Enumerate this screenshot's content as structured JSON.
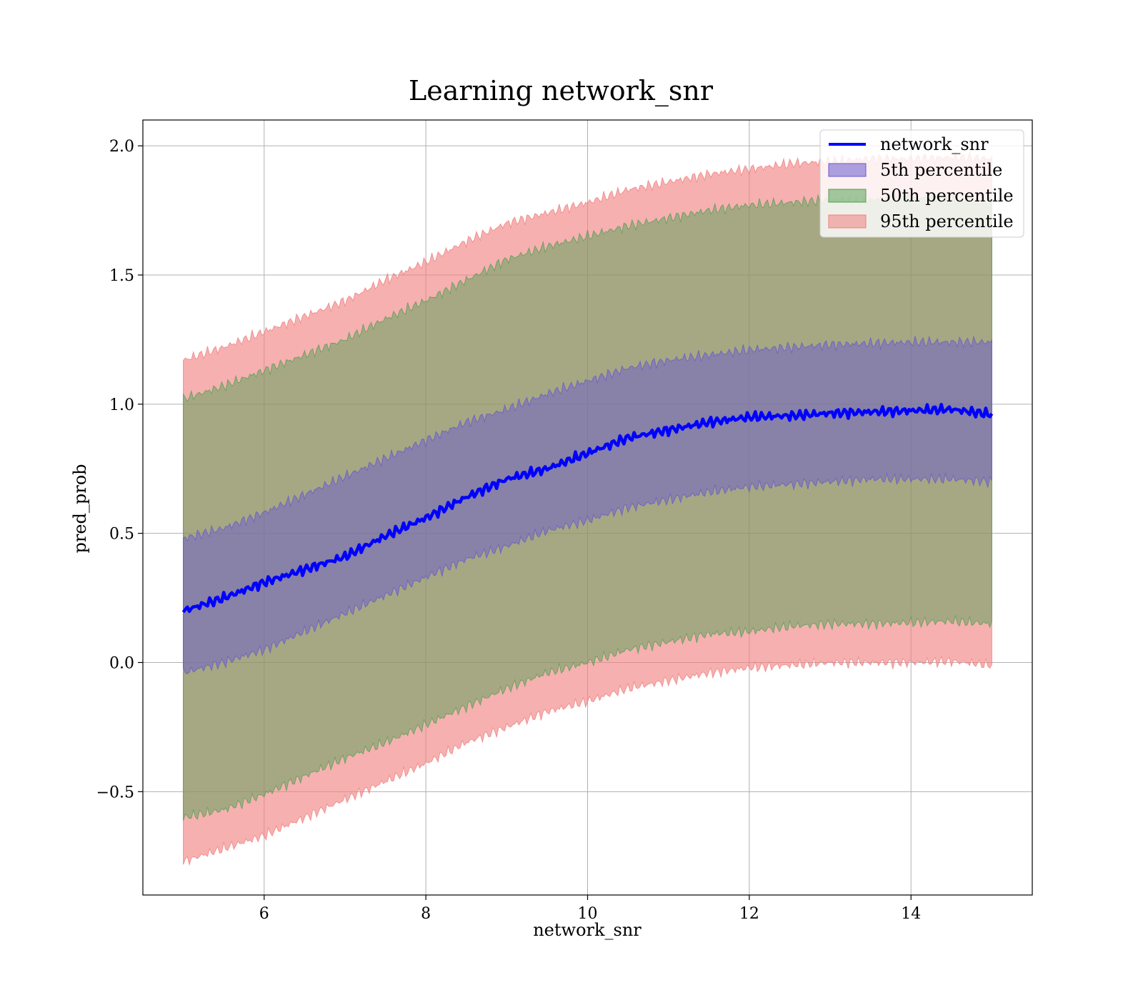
{
  "chart_data": {
    "type": "area",
    "title": "Learning network_snr",
    "xlabel": "network_snr",
    "ylabel": "pred_prob",
    "xlim": [
      4.5,
      15.5
    ],
    "ylim": [
      -0.9,
      2.1
    ],
    "x_ticks": [
      6,
      8,
      10,
      12,
      14
    ],
    "x_tick_labels": [
      "6",
      "8",
      "10",
      "12",
      "14"
    ],
    "y_ticks": [
      -0.5,
      0.0,
      0.5,
      1.0,
      1.5,
      2.0
    ],
    "y_tick_labels": [
      "−0.5",
      "0.0",
      "0.5",
      "1.0",
      "1.5",
      "2.0"
    ],
    "grid": true,
    "legend_position": "top-right",
    "x": [
      5,
      5.5,
      6,
      6.5,
      7,
      7.5,
      8,
      8.5,
      9,
      9.5,
      10,
      10.5,
      11,
      11.5,
      12,
      12.5,
      13,
      13.5,
      14,
      14.5,
      15
    ],
    "series": [
      {
        "name": "network_snr",
        "kind": "line",
        "color": "#0000ff",
        "values": [
          0.2,
          0.25,
          0.31,
          0.36,
          0.41,
          0.49,
          0.56,
          0.64,
          0.71,
          0.75,
          0.81,
          0.87,
          0.9,
          0.93,
          0.95,
          0.955,
          0.965,
          0.97,
          0.975,
          0.98,
          0.96
        ]
      },
      {
        "name": "5th percentile",
        "kind": "band",
        "color": "#6a5acd",
        "lower": [
          -0.04,
          0.0,
          0.05,
          0.12,
          0.19,
          0.26,
          0.33,
          0.4,
          0.45,
          0.51,
          0.55,
          0.6,
          0.63,
          0.66,
          0.68,
          0.69,
          0.7,
          0.71,
          0.71,
          0.71,
          0.7
        ],
        "upper": [
          0.48,
          0.52,
          0.58,
          0.65,
          0.72,
          0.79,
          0.86,
          0.93,
          0.98,
          1.04,
          1.09,
          1.14,
          1.17,
          1.19,
          1.21,
          1.22,
          1.23,
          1.235,
          1.24,
          1.24,
          1.24
        ]
      },
      {
        "name": "50th percentile",
        "kind": "band",
        "color": "#55a055",
        "lower": [
          -0.6,
          -0.57,
          -0.51,
          -0.44,
          -0.37,
          -0.31,
          -0.24,
          -0.17,
          -0.1,
          -0.04,
          0.0,
          0.05,
          0.08,
          0.11,
          0.12,
          0.14,
          0.15,
          0.15,
          0.155,
          0.16,
          0.15
        ],
        "upper": [
          1.02,
          1.07,
          1.13,
          1.19,
          1.25,
          1.33,
          1.4,
          1.48,
          1.56,
          1.61,
          1.65,
          1.69,
          1.72,
          1.75,
          1.77,
          1.78,
          1.79,
          1.79,
          1.8,
          1.79,
          1.78
        ]
      },
      {
        "name": "95th percentile",
        "kind": "band",
        "color": "#f08080",
        "lower": [
          -0.77,
          -0.72,
          -0.67,
          -0.6,
          -0.53,
          -0.46,
          -0.39,
          -0.31,
          -0.25,
          -0.19,
          -0.15,
          -0.1,
          -0.07,
          -0.04,
          -0.02,
          -0.01,
          0.0,
          0.0,
          0.0,
          0.005,
          -0.01
        ],
        "upper": [
          1.17,
          1.22,
          1.28,
          1.34,
          1.4,
          1.48,
          1.55,
          1.63,
          1.7,
          1.74,
          1.78,
          1.83,
          1.86,
          1.89,
          1.91,
          1.93,
          1.94,
          1.95,
          1.95,
          1.955,
          1.95
        ]
      }
    ]
  }
}
